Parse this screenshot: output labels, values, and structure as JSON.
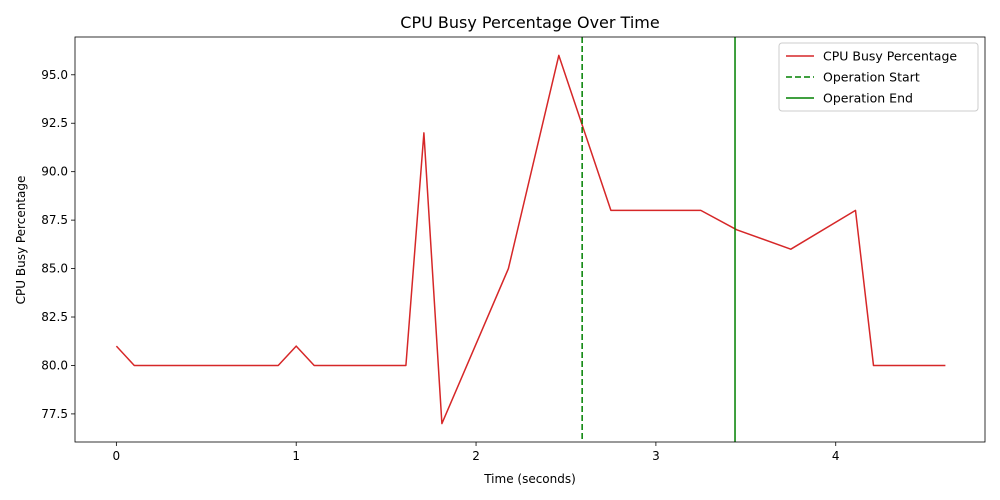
{
  "chart_data": {
    "type": "line",
    "title": "CPU Busy Percentage Over Time",
    "xlabel": "Time (seconds)",
    "ylabel": "CPU Busy Percentage",
    "xlim": [
      -0.23,
      4.83
    ],
    "ylim": [
      76.05,
      96.95
    ],
    "xticks": [
      0,
      1,
      2,
      3,
      4
    ],
    "xtick_labels": [
      "0",
      "1",
      "2",
      "3",
      "4"
    ],
    "yticks": [
      77.5,
      80.0,
      82.5,
      85.0,
      87.5,
      90.0,
      92.5,
      95.0
    ],
    "ytick_labels": [
      "77.5",
      "80.0",
      "82.5",
      "85.0",
      "87.5",
      "90.0",
      "92.5",
      "95.0"
    ],
    "grid": false,
    "legend_position": "top-right",
    "series": [
      {
        "name": "CPU Busy Percentage",
        "color": "#d62728",
        "style": "solid",
        "x": [
          0.0,
          0.1,
          0.2,
          0.3,
          0.4,
          0.5,
          0.6,
          0.7,
          0.8,
          0.9,
          1.0,
          1.1,
          1.2,
          1.3,
          1.4,
          1.5,
          1.61,
          1.71,
          1.81,
          2.18,
          2.46,
          2.75,
          2.9,
          3.1,
          3.25,
          3.45,
          3.75,
          4.11,
          4.21,
          4.4,
          4.61
        ],
        "y": [
          81,
          80,
          80,
          80,
          80,
          80,
          80,
          80,
          80,
          80,
          81,
          80,
          80,
          80,
          80,
          80,
          80,
          92,
          77,
          85,
          96,
          88,
          88,
          88,
          88,
          87,
          86,
          88,
          80,
          80,
          80
        ]
      }
    ],
    "vlines": [
      {
        "name": "Operation Start",
        "x": 2.59,
        "color": "#008000",
        "style": "dashed"
      },
      {
        "name": "Operation End",
        "x": 3.44,
        "color": "#008000",
        "style": "solid"
      }
    ]
  }
}
